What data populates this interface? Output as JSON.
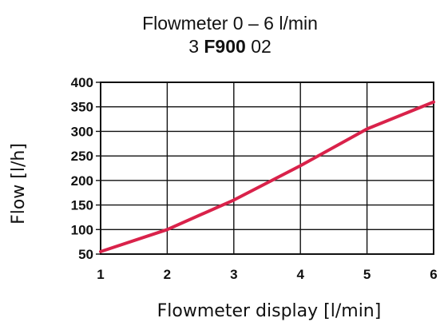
{
  "title": {
    "line1": "Flowmeter 0 – 6 l/min",
    "line2_part1": "3 ",
    "line2_part2": "F900",
    "line2_part3": " 02"
  },
  "xlabel": "Flowmeter display [l/min]",
  "ylabel": "Flow [l/h]",
  "colors": {
    "series": "#d9224a",
    "grid": "#111111",
    "background": "#ffffff"
  },
  "chart_data": {
    "type": "line",
    "title": "Flowmeter 0 – 6 l/min 3 F900 02",
    "xlabel": "Flowmeter display [l/min]",
    "ylabel": "Flow [l/h]",
    "xlim": [
      1,
      6
    ],
    "ylim": [
      50,
      400
    ],
    "xticks": [
      1,
      2,
      3,
      4,
      5,
      6
    ],
    "yticks": [
      50,
      100,
      150,
      200,
      250,
      300,
      350,
      400
    ],
    "grid": true,
    "legend": "none",
    "series": [
      {
        "x": [
          1,
          2,
          3,
          4,
          5,
          6
        ],
        "y": [
          55,
          100,
          160,
          230,
          305,
          360
        ]
      }
    ]
  }
}
